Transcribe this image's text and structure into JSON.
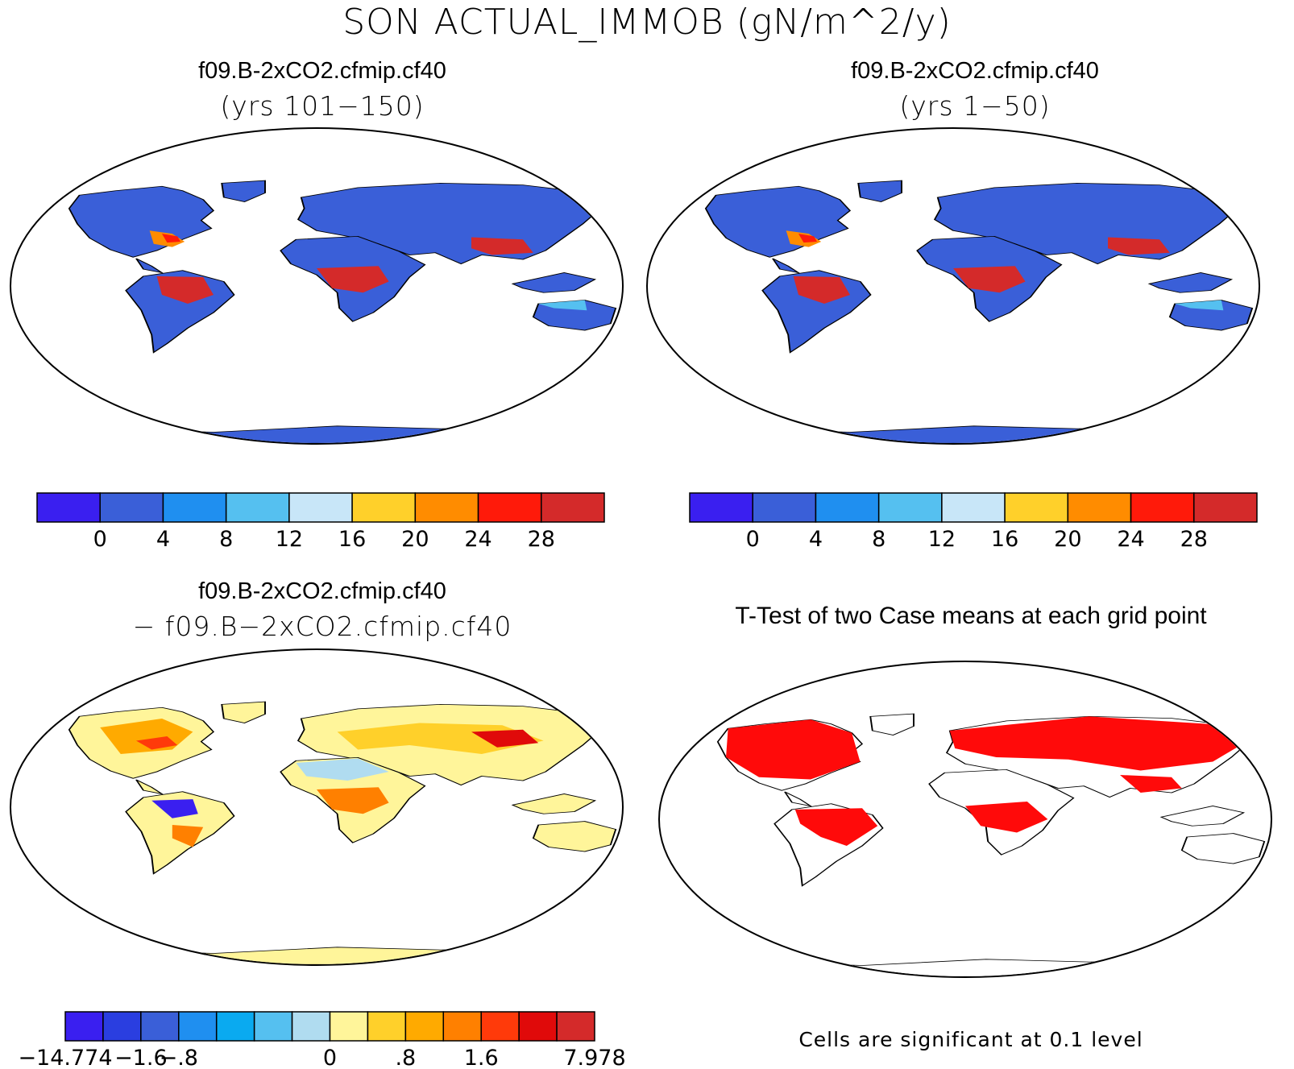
{
  "title": "SON ACTUAL_IMMOB (gN/m^2/y)",
  "panels": [
    {
      "title": "f09.B-2xCO2.cfmip.cf40",
      "subtitle": "(yrs 101−150)"
    },
    {
      "title": "f09.B-2xCO2.cfmip.cf40",
      "subtitle": "(yrs 1−50)"
    },
    {
      "title": "f09.B-2xCO2.cfmip.cf40",
      "subtitle": "− f09.B−2xCO2.cfmip.cf40"
    },
    {
      "title": "T-Test of two Case means at each grid point",
      "note": "Cells are significant at 0.1 level"
    }
  ],
  "colorbars": {
    "absolute": {
      "colors": [
        "#3a1ff0",
        "#3a5fd8",
        "#1f8ff0",
        "#55c0f0",
        "#c8e6f8",
        "#ffd02a",
        "#ff8c00",
        "#ff1a0a",
        "#d42a2a"
      ],
      "labels": [
        "0",
        "4",
        "8",
        "12",
        "16",
        "20",
        "24",
        "28"
      ]
    },
    "difference": {
      "colors": [
        "#3a1ff0",
        "#2a3ee0",
        "#3a5fd8",
        "#1f8ff0",
        "#0aaaf0",
        "#55c0f0",
        "#b0dcf0",
        "#fff59a",
        "#ffd02a",
        "#ffaa00",
        "#ff8000",
        "#ff3a0a",
        "#e00a0a",
        "#d42a2a"
      ],
      "labels": [
        "−14.774",
        "−1.6",
        "−.8",
        "0",
        ".8",
        "1.6",
        "7.978"
      ]
    }
  },
  "legend_colors": {
    "land_abs": "#3a5fd8",
    "land_diff": "#fff59a",
    "significant": "#ff0a0a"
  }
}
